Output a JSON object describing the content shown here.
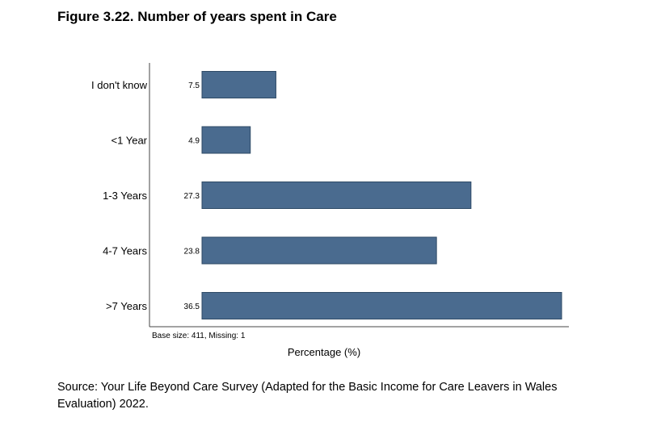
{
  "figure": {
    "title": "Figure 3.22. Number of years spent in Care",
    "source": "Source: Your Life Beyond Care Survey (Adapted for the Basic Income for Care Leavers in Wales Evaluation) 2022."
  },
  "chart_data": {
    "type": "bar",
    "orientation": "horizontal",
    "title": "Number of years spent in Care",
    "categories": [
      "I don't know",
      "<1 Year",
      "1-3 Years",
      "4-7 Years",
      ">7 Years"
    ],
    "values": [
      7.5,
      4.9,
      27.3,
      23.8,
      36.5
    ],
    "xlabel": "Percentage (%)",
    "ylabel": "",
    "xlim": [
      0,
      36.5
    ],
    "note": "Base size: 411, Missing: 1",
    "grid": false,
    "legend": "none",
    "colors": {
      "bar": "#4a6b8f",
      "bar_border": "#2e4a66",
      "axis": "#444444"
    }
  }
}
